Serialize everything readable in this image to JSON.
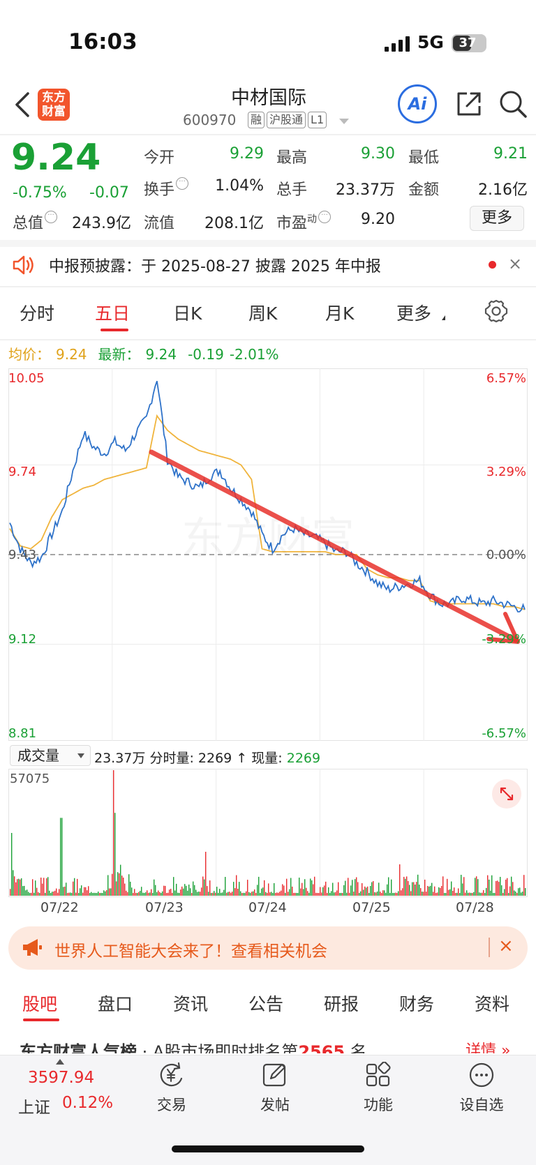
{
  "status_bar": {
    "time": "16:03",
    "network": "5G",
    "battery": "37"
  },
  "header": {
    "logo_text": "东方\n财富",
    "stock_name": "中材国际",
    "stock_code": "600970",
    "tags": [
      "融",
      "沪股通",
      "L1"
    ],
    "ai_label": "Ai"
  },
  "quote": {
    "price": "9.24",
    "change_pct": "-0.75%",
    "change_abs": "-0.07",
    "open_label": "今开",
    "open": "9.29",
    "high_label": "最高",
    "high": "9.30",
    "low_label": "最低",
    "low": "9.21",
    "turnover_label": "换手",
    "turnover": "1.04%",
    "total_hands_label": "总手",
    "total_hands": "23.37万",
    "amount_label": "金额",
    "amount": "2.16亿",
    "market_cap_label": "总值",
    "market_cap": "243.9亿",
    "float_cap_label": "流值",
    "float_cap": "208.1亿",
    "pe_label": "市盈",
    "pe_sup": "动",
    "pe": "9.20",
    "more_label": "更多",
    "colors": {
      "down": "#1aa035",
      "up": "#e8292c"
    }
  },
  "notice": {
    "text": "中报预披露：于 2025-08-27 披露 2025 年中报",
    "close": "×"
  },
  "chart_tabs": {
    "items": [
      "分时",
      "五日",
      "日K",
      "周K",
      "月K",
      "更多"
    ],
    "active": "五日"
  },
  "legend": {
    "avg_label": "均价：",
    "avg": "9.24",
    "latest_label": "最新：",
    "latest": "9.24",
    "diff": "-0.19",
    "diff_pct": "-2.01%"
  },
  "chart_data": {
    "type": "line",
    "x_labels": [
      "07/22",
      "07/23",
      "07/24",
      "07/25",
      "07/28"
    ],
    "ylim": [
      8.81,
      10.05
    ],
    "y_ticks_left": [
      "10.05",
      "9.74",
      "9.43",
      "9.12",
      "8.81"
    ],
    "y_ticks_right": [
      "6.57%",
      "3.29%",
      "0.00%",
      "-3.29%",
      "-6.57%"
    ],
    "prev_close": 9.43,
    "series": [
      {
        "values": [
          9.54,
          9.45,
          9.4,
          9.42,
          9.5,
          9.58,
          9.72,
          9.85,
          9.8,
          9.78,
          9.82,
          9.79,
          9.85,
          9.9,
          10.04,
          9.76,
          9.7,
          9.68,
          9.66,
          9.7,
          9.72,
          9.66,
          9.62,
          9.58,
          9.5,
          9.45,
          9.5,
          9.52,
          9.5,
          9.49,
          9.47,
          9.44,
          9.44,
          9.4,
          9.37,
          9.33,
          9.31,
          9.32,
          9.33,
          9.34,
          9.29,
          9.26,
          9.26,
          9.28,
          9.27,
          9.26,
          9.27,
          9.26,
          9.25,
          9.24
        ]
      },
      {
        "values": [
          9.52,
          9.46,
          9.45,
          9.48,
          9.56,
          9.62,
          9.64,
          9.66,
          9.67,
          9.69,
          9.7,
          9.71,
          9.72,
          9.73,
          9.91,
          9.86,
          9.83,
          9.81,
          9.79,
          9.78,
          9.77,
          9.76,
          9.74,
          9.69,
          9.45,
          9.44,
          9.44,
          9.44,
          9.44,
          9.44,
          9.44,
          9.43,
          9.43,
          9.43,
          9.38,
          9.36,
          9.35,
          9.35,
          9.34,
          9.34,
          9.27,
          9.26,
          9.26,
          9.26,
          9.26,
          9.26,
          9.26,
          9.25,
          9.25,
          9.24
        ]
      }
    ]
  },
  "volume": {
    "selector": "成交量",
    "total": "23.37万",
    "tick_label": "分时量:",
    "tick_value": "2269",
    "arrow": "↑",
    "current_label": "现量:",
    "current_value": "2269",
    "max": "57075"
  },
  "banner": {
    "text": "世界人工智能大会来了！查看相关机会",
    "close": "×"
  },
  "bottom_tabs": {
    "items": [
      "股吧",
      "盘口",
      "资讯",
      "公告",
      "研报",
      "财务",
      "资料"
    ],
    "active": "股吧"
  },
  "ranking": {
    "prefix": "东方财富人气榜",
    "text": "A股市场即时排名第",
    "rank": "2565",
    "suffix": "名",
    "link": "详情 »"
  },
  "bottom_nav": {
    "index_value": "3597.94",
    "index_name": "上证",
    "index_pct": "0.12%",
    "items": [
      {
        "label": "交易",
        "icon": "yen-icon"
      },
      {
        "label": "发帖",
        "icon": "edit-icon"
      },
      {
        "label": "功能",
        "icon": "grid-icon"
      },
      {
        "label": "设自选",
        "icon": "more-dots-icon"
      }
    ]
  }
}
